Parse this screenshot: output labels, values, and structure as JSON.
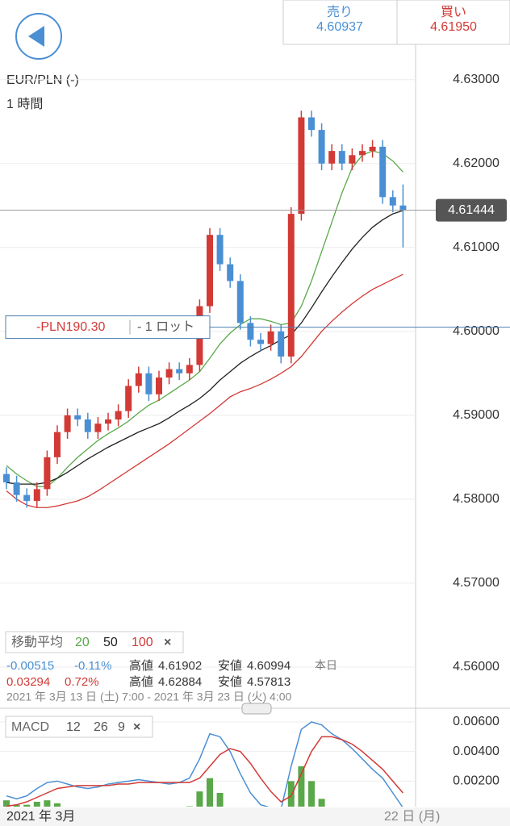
{
  "header": {
    "sell_label": "売り",
    "sell_price": "4.60937",
    "buy_label": "買い",
    "buy_price": "4.61950"
  },
  "chart_data": [
    {
      "type": "candlestick",
      "title": "EUR/PLN (-)",
      "subtitle": "1 時間",
      "up_color": "#d23a36",
      "down_color": "#4a8fd4",
      "grid": true,
      "ylim": [
        4.5549,
        4.6342
      ],
      "yticks": [
        {
          "value": 4.56,
          "label": "4.56000"
        },
        {
          "value": 4.57,
          "label": "4.57000"
        },
        {
          "value": 4.58,
          "label": "4.58000"
        },
        {
          "value": 4.59,
          "label": "4.59000"
        },
        {
          "value": 4.6,
          "label": "4.60000"
        },
        {
          "value": 4.61,
          "label": "4.61000"
        },
        {
          "value": 4.62,
          "label": "4.62000"
        },
        {
          "value": 4.63,
          "label": "4.63000"
        }
      ],
      "open": [
        4.583,
        4.582,
        4.5805,
        4.5798,
        4.5812,
        4.585,
        4.588,
        4.59,
        4.5895,
        4.588,
        4.589,
        4.5895,
        4.5905,
        4.5935,
        4.595,
        4.5925,
        4.5945,
        4.5955,
        4.595,
        4.596,
        4.603,
        4.6115,
        4.608,
        4.606,
        4.601,
        4.599,
        4.5985,
        4.6,
        4.597,
        4.614,
        4.6255,
        4.624,
        4.62,
        4.6215,
        4.62,
        4.621,
        4.6215,
        4.622,
        4.616,
        4.615
      ],
      "high": [
        4.5838,
        4.5828,
        4.5813,
        4.582,
        4.5858,
        4.5888,
        4.5908,
        4.5908,
        4.5903,
        4.5898,
        4.5903,
        4.5913,
        4.5943,
        4.5958,
        4.5958,
        4.5953,
        4.5963,
        4.5963,
        4.5968,
        4.6038,
        4.6123,
        4.6123,
        4.6088,
        4.6068,
        4.6018,
        4.5998,
        4.6008,
        4.6008,
        4.6148,
        4.6263,
        4.6263,
        4.6248,
        4.6223,
        4.6223,
        4.6218,
        4.6223,
        4.6228,
        4.6228,
        4.6168,
        4.6175
      ],
      "low": [
        4.5812,
        4.5797,
        4.579,
        4.579,
        4.5804,
        4.5842,
        4.5872,
        4.5887,
        4.5872,
        4.5872,
        4.5882,
        4.5887,
        4.5897,
        4.5927,
        4.5917,
        4.5917,
        4.5937,
        4.5942,
        4.5942,
        4.5952,
        4.6022,
        4.6072,
        4.6052,
        4.6002,
        4.5982,
        4.5977,
        4.5977,
        4.5962,
        4.5962,
        4.6132,
        4.6232,
        4.6192,
        4.6192,
        4.6192,
        4.6192,
        4.6202,
        4.6207,
        4.6152,
        4.6142,
        4.61
      ],
      "close": [
        4.582,
        4.5805,
        4.5798,
        4.5812,
        4.585,
        4.588,
        4.59,
        4.5895,
        4.588,
        4.589,
        4.5895,
        4.5905,
        4.5935,
        4.595,
        4.5925,
        4.5945,
        4.5955,
        4.595,
        4.596,
        4.603,
        4.6115,
        4.608,
        4.606,
        4.601,
        4.599,
        4.5985,
        4.6,
        4.597,
        4.614,
        4.6255,
        4.624,
        4.62,
        4.6215,
        4.62,
        4.621,
        4.6215,
        4.622,
        4.616,
        4.615,
        4.6144
      ],
      "legend_label": "移動平均",
      "moving_averages": [
        {
          "name": 20,
          "color": "#5aa84a",
          "values": [
            4.584,
            4.583,
            4.5822,
            4.5815,
            4.5815,
            4.5825,
            4.5838,
            4.585,
            4.586,
            4.587,
            4.5878,
            4.5885,
            4.5893,
            4.5903,
            4.5912,
            4.5918,
            4.5926,
            4.5934,
            4.5942,
            4.5952,
            4.5968,
            4.5985,
            4.5998,
            4.6008,
            4.6015,
            4.6015,
            4.6012,
            4.6008,
            4.601,
            4.603,
            4.606,
            4.6095,
            4.613,
            4.6165,
            4.6195,
            4.621,
            4.6215,
            4.6212,
            4.6203,
            4.619
          ]
        },
        {
          "name": 50,
          "color": "#222222",
          "values": [
            4.582,
            4.5818,
            4.5818,
            4.5818,
            4.582,
            4.5825,
            4.5832,
            4.584,
            4.5848,
            4.5855,
            4.5862,
            4.5868,
            4.5874,
            4.588,
            4.5885,
            4.589,
            4.5897,
            4.5905,
            4.5912,
            4.592,
            4.593,
            4.5942,
            4.5952,
            4.5962,
            4.597,
            4.5977,
            4.5983,
            4.599,
            4.5996,
            4.601,
            4.6028,
            4.6047,
            4.6065,
            4.6082,
            4.6098,
            4.6112,
            4.6124,
            4.6133,
            4.614,
            4.6144
          ]
        },
        {
          "name": 100,
          "color": "#d23a36",
          "values": [
            4.581,
            4.58,
            4.5793,
            4.579,
            4.579,
            4.5792,
            4.5795,
            4.5798,
            4.5803,
            4.581,
            4.5818,
            4.5826,
            4.5834,
            4.5842,
            4.585,
            4.5858,
            4.5866,
            4.5875,
            4.5884,
            4.5893,
            4.5902,
            4.5912,
            4.5922,
            4.5928,
            4.5932,
            4.5937,
            4.5943,
            4.595,
            4.5958,
            4.597,
            4.5985,
            4.6,
            4.6012,
            4.6023,
            4.6033,
            4.6042,
            4.605,
            4.6056,
            4.6062,
            4.6068
          ]
        }
      ],
      "current_price": 4.61444,
      "position": {
        "price": 4.6005,
        "pnl": "-PLN190.30",
        "lots": "- 1 ロット"
      },
      "x_labels": [
        "2021 年 3月",
        "22 日 (月)"
      ]
    },
    {
      "type": "macd",
      "title": "MACD",
      "params": [
        12,
        26,
        9
      ],
      "ylim": [
        0,
        0.0066
      ],
      "yticks": [
        {
          "value": 0.002,
          "label": "0.00200"
        },
        {
          "value": 0.004,
          "label": "0.00400"
        },
        {
          "value": 0.006,
          "label": "0.00600"
        }
      ],
      "series": [
        {
          "name": "MACD",
          "color": "#4a8fd4",
          "values": [
            0.001,
            0.0008,
            0.001,
            0.0015,
            0.0019,
            0.002,
            0.0018,
            0.0016,
            0.0015,
            0.0016,
            0.0018,
            0.0019,
            0.002,
            0.0021,
            0.002,
            0.0019,
            0.0018,
            0.0019,
            0.0022,
            0.0035,
            0.0052,
            0.005,
            0.004,
            0.0025,
            0.0012,
            0.0004,
            0.0002,
            0.0001,
            0.003,
            0.0055,
            0.006,
            0.0058,
            0.0052,
            0.0048,
            0.0042,
            0.0035,
            0.0028,
            0.0022,
            0.0012,
            0.0002
          ]
        },
        {
          "name": "Signal",
          "color": "#d23a36",
          "values": [
            0.0003,
            0.0004,
            0.0006,
            0.0009,
            0.0012,
            0.0015,
            0.0016,
            0.0017,
            0.0017,
            0.0017,
            0.0017,
            0.0018,
            0.0018,
            0.0019,
            0.0019,
            0.0019,
            0.0019,
            0.0019,
            0.0019,
            0.0022,
            0.003,
            0.0038,
            0.0042,
            0.004,
            0.0032,
            0.0022,
            0.0013,
            0.0006,
            0.001,
            0.0025,
            0.004,
            0.005,
            0.005,
            0.0048,
            0.0045,
            0.004,
            0.0034,
            0.0028,
            0.002,
            0.0012
          ]
        }
      ],
      "histogram": {
        "color": "#5aa84a",
        "values": [
          0.0007,
          0.0004,
          0.0004,
          0.0006,
          0.0007,
          0.0005,
          0.0002,
          -0.0001,
          -0.0002,
          -0.0001,
          0.0001,
          0.0001,
          0.0002,
          0.0002,
          0.0001,
          0,
          -0.0001,
          0,
          0.0003,
          0.0013,
          0.0022,
          0.0012,
          -0.0002,
          -0.0015,
          -0.002,
          -0.0018,
          -0.0011,
          -0.0005,
          0.002,
          0.003,
          0.002,
          0.0008,
          0.0002,
          0,
          -0.0003,
          -0.0005,
          -0.0006,
          -0.0006,
          -0.0008,
          -0.001
        ]
      }
    }
  ],
  "stats": {
    "day": {
      "change": "-0.00515",
      "change_pct": "-0.11%",
      "high_label": "高値",
      "high": "4.61902",
      "low_label": "安値",
      "low": "4.60994",
      "period": "本日"
    },
    "range": {
      "change": "0.03294",
      "change_pct": "0.72%",
      "high_label": "高値",
      "high": "4.62884",
      "low_label": "安値",
      "low": "4.57813"
    },
    "period": "2021 年 3月 13 日 (土) 7:00 - 2021 年 3月 23 日 (火) 4:00"
  }
}
